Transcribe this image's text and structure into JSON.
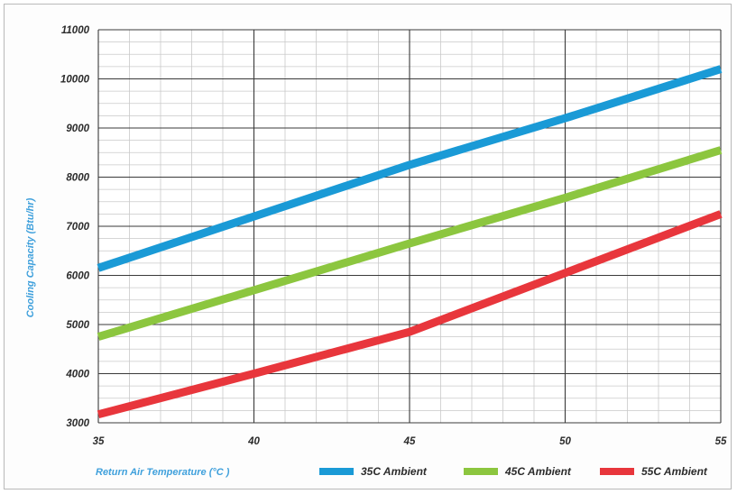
{
  "chart_data": {
    "type": "line",
    "xlabel": "Return Air Temperature (°C )",
    "ylabel": "Cooling Capacity (Btu/hr)",
    "xlim": [
      35,
      55
    ],
    "ylim": [
      3000,
      11000
    ],
    "x_ticks": [
      "35",
      "40",
      "45",
      "50",
      "55"
    ],
    "y_ticks": [
      "3000",
      "4000",
      "5000",
      "6000",
      "7000",
      "8000",
      "9000",
      "10000",
      "11000"
    ],
    "grid": true,
    "legend_position": "bottom",
    "series": [
      {
        "name": "35C Ambient",
        "color": "#1a9ad6",
        "x": [
          35,
          40,
          45,
          50,
          55
        ],
        "y": [
          6150,
          7200,
          8250,
          9200,
          10200
        ]
      },
      {
        "name": "45C Ambient",
        "color": "#8cc63f",
        "x": [
          35,
          40,
          45,
          50,
          55
        ],
        "y": [
          4750,
          5700,
          6650,
          7580,
          8550
        ]
      },
      {
        "name": "55C Ambient",
        "color": "#e8363c",
        "x": [
          35,
          40,
          45,
          50,
          55
        ],
        "y": [
          3170,
          4000,
          4850,
          6050,
          7250
        ]
      }
    ]
  }
}
